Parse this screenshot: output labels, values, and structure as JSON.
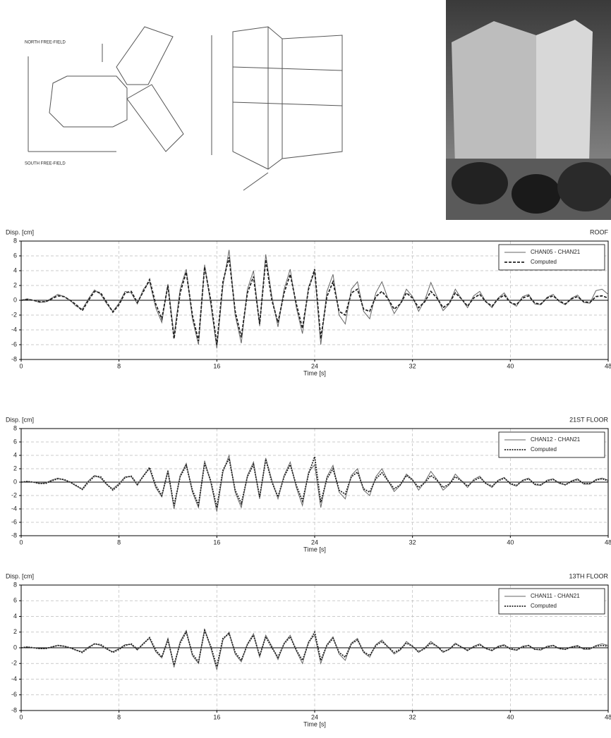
{
  "figure": {
    "labels": [
      "NORTH FREE-FIELD",
      "SOUTH FREE-FIELD"
    ]
  },
  "chart_data": [
    {
      "type": "line",
      "title": "ROOF",
      "y_label": "Disp. [cm]",
      "x_label": "Time [s]",
      "x": [
        0,
        0.5,
        1,
        1.5,
        2,
        2.5,
        3,
        3.5,
        4,
        4.5,
        5,
        5.5,
        6,
        6.5,
        7,
        7.5,
        8,
        8.5,
        9,
        9.5,
        10,
        10.5,
        11,
        11.5,
        12,
        12.5,
        13,
        13.5,
        14,
        14.5,
        15,
        15.5,
        16,
        16.5,
        17,
        17.5,
        18,
        18.5,
        19,
        19.5,
        20,
        20.5,
        21,
        21.5,
        22,
        22.5,
        23,
        23.5,
        24,
        24.5,
        25,
        25.5,
        26,
        26.5,
        27,
        27.5,
        28,
        28.5,
        29,
        29.5,
        30,
        30.5,
        31,
        31.5,
        32,
        32.5,
        33,
        33.5,
        34,
        34.5,
        35,
        35.5,
        36,
        36.5,
        37,
        37.5,
        38,
        38.5,
        39,
        39.5,
        40,
        40.5,
        41,
        41.5,
        42,
        42.5,
        43,
        43.5,
        44,
        44.5,
        45,
        45.5,
        46,
        46.5,
        47,
        47.5,
        48
      ],
      "xlim": [
        0,
        48
      ],
      "xticks": [
        0,
        8,
        16,
        24,
        32,
        40,
        48
      ],
      "ylim": [
        -8,
        8
      ],
      "yticks": [
        -8,
        -6,
        -4,
        -2,
        0,
        2,
        4,
        6,
        8
      ],
      "grid": true,
      "legend": "upper right",
      "series": [
        {
          "name": "CHAN05 - CHAN21",
          "color": "#666666",
          "linestyle": "solid",
          "values": [
            0,
            0.2,
            0,
            -0.3,
            -0.2,
            0.3,
            0.8,
            0.5,
            0,
            -0.8,
            -1.2,
            0.2,
            1.4,
            0.8,
            -0.5,
            -1.5,
            -0.4,
            1.2,
            1.0,
            -0.5,
            1.5,
            2.5,
            -1.0,
            -3.0,
            2.2,
            -4.8,
            1.5,
            4.2,
            -2.5,
            -6.0,
            4.8,
            -0.5,
            -6.5,
            2.0,
            6.8,
            -2.0,
            -5.8,
            1.5,
            4.0,
            -3.5,
            6.2,
            0.5,
            -3.6,
            1.5,
            4.2,
            -1.0,
            -4.5,
            1.8,
            3.8,
            -6.0,
            1.2,
            3.5,
            -2.0,
            -3.2,
            1.5,
            2.5,
            -1.5,
            -2.5,
            1.0,
            2.5,
            0.2,
            -1.8,
            -0.5,
            1.5,
            0.5,
            -1.5,
            0,
            2.4,
            0.5,
            -1.4,
            -0.5,
            1.5,
            0.2,
            -1.0,
            0.6,
            1.2,
            -0.2,
            -1.0,
            0.3,
            1.0,
            -0.3,
            -0.8,
            0.5,
            0.8,
            -0.5,
            -0.6,
            0.4,
            0.8,
            -0.2,
            -0.6,
            0.3,
            0.7,
            -0.3,
            -0.4,
            1.3,
            1.5,
            0.8
          ]
        },
        {
          "name": "Computed",
          "color": "#222222",
          "linestyle": "dashed",
          "values": [
            0,
            0.1,
            0,
            -0.2,
            -0.2,
            0.2,
            0.6,
            0.5,
            0,
            -0.6,
            -1.4,
            0,
            1.2,
            1.0,
            -0.3,
            -1.6,
            -0.6,
            1.0,
            1.2,
            -0.3,
            1.2,
            2.8,
            -0.5,
            -2.5,
            2.0,
            -5.2,
            1.0,
            3.8,
            -2.0,
            -5.5,
            4.5,
            0,
            -6.0,
            2.5,
            5.8,
            -1.5,
            -5.0,
            1.0,
            3.2,
            -3.2,
            5.5,
            0,
            -3.0,
            1.0,
            3.5,
            -0.5,
            -3.8,
            1.5,
            4.2,
            -5.2,
            0.5,
            2.5,
            -1.5,
            -2.0,
            1.0,
            1.5,
            -1.2,
            -1.5,
            0.5,
            1.2,
            0.2,
            -1.2,
            -0.5,
            1.0,
            0.3,
            -1.0,
            -0.2,
            1.2,
            0.3,
            -1.0,
            -0.4,
            1.0,
            0.2,
            -0.8,
            0.3,
            0.8,
            -0.2,
            -0.8,
            0.2,
            0.7,
            -0.3,
            -0.6,
            0.3,
            0.6,
            -0.4,
            -0.5,
            0.3,
            0.6,
            -0.1,
            -0.5,
            0.2,
            0.5,
            -0.2,
            -0.3,
            0.5,
            0.6,
            0.3
          ]
        }
      ]
    },
    {
      "type": "line",
      "title": "21ST FLOOR",
      "y_label": "Disp. [cm]",
      "x_label": "Time [s]",
      "x": [
        0,
        0.5,
        1,
        1.5,
        2,
        2.5,
        3,
        3.5,
        4,
        4.5,
        5,
        5.5,
        6,
        6.5,
        7,
        7.5,
        8,
        8.5,
        9,
        9.5,
        10,
        10.5,
        11,
        11.5,
        12,
        12.5,
        13,
        13.5,
        14,
        14.5,
        15,
        15.5,
        16,
        16.5,
        17,
        17.5,
        18,
        18.5,
        19,
        19.5,
        20,
        20.5,
        21,
        21.5,
        22,
        22.5,
        23,
        23.5,
        24,
        24.5,
        25,
        25.5,
        26,
        26.5,
        27,
        27.5,
        28,
        28.5,
        29,
        29.5,
        30,
        30.5,
        31,
        31.5,
        32,
        32.5,
        33,
        33.5,
        34,
        34.5,
        35,
        35.5,
        36,
        36.5,
        37,
        37.5,
        38,
        38.5,
        39,
        39.5,
        40,
        40.5,
        41,
        41.5,
        42,
        42.5,
        43,
        43.5,
        44,
        44.5,
        45,
        45.5,
        46,
        46.5,
        47,
        47.5,
        48
      ],
      "xlim": [
        0,
        48
      ],
      "xticks": [
        0,
        8,
        16,
        24,
        32,
        40,
        48
      ],
      "ylim": [
        -8,
        8
      ],
      "yticks": [
        -8,
        -6,
        -4,
        -2,
        0,
        2,
        4,
        6,
        8
      ],
      "grid": true,
      "legend": "upper right",
      "series": [
        {
          "name": "CHAN12 - CHAN21",
          "color": "#666666",
          "linestyle": "solid",
          "values": [
            0,
            0.1,
            0,
            -0.2,
            -0.1,
            0.3,
            0.6,
            0.3,
            0,
            -0.6,
            -1.0,
            0.2,
            1.0,
            0.6,
            -0.4,
            -1.0,
            -0.2,
            0.8,
            0.8,
            -0.5,
            1.0,
            2.0,
            -0.8,
            -2.2,
            1.8,
            -4.0,
            1.0,
            2.8,
            -1.5,
            -3.8,
            3.2,
            0,
            -4.4,
            1.5,
            4.0,
            -1.5,
            -3.8,
            1.0,
            3.0,
            -2.5,
            3.6,
            0.3,
            -2.5,
            1.0,
            3.0,
            -0.8,
            -3.5,
            1.5,
            2.6,
            -3.8,
            0.8,
            2.5,
            -1.5,
            -2.5,
            1.0,
            2.0,
            -1.2,
            -2.0,
            0.8,
            2.0,
            0.2,
            -1.4,
            -0.5,
            1.2,
            0.4,
            -1.2,
            0,
            1.6,
            0.4,
            -1.2,
            -0.4,
            1.2,
            0.2,
            -0.8,
            0.4,
            0.9,
            -0.2,
            -0.8,
            0.3,
            0.7,
            -0.3,
            -0.6,
            0.3,
            0.6,
            -0.4,
            -0.5,
            0.3,
            0.5,
            -0.2,
            -0.4,
            0.2,
            0.5,
            -0.3,
            -0.3,
            0.4,
            0.6,
            0.3
          ]
        },
        {
          "name": "Computed",
          "color": "#222222",
          "linestyle": "dotted",
          "values": [
            0,
            0.1,
            0,
            -0.2,
            -0.2,
            0.2,
            0.5,
            0.4,
            0,
            -0.5,
            -1.1,
            0,
            0.9,
            0.8,
            -0.3,
            -1.2,
            -0.4,
            0.7,
            0.9,
            -0.3,
            0.9,
            2.2,
            -0.5,
            -2.0,
            1.6,
            -3.5,
            0.8,
            2.5,
            -1.2,
            -3.4,
            2.8,
            0.2,
            -3.8,
            1.8,
            3.5,
            -1.2,
            -3.2,
            0.8,
            2.6,
            -2.2,
            3.4,
            0,
            -2.2,
            0.8,
            2.6,
            -0.5,
            -2.8,
            1.2,
            3.8,
            -3.0,
            0.5,
            2.0,
            -1.2,
            -1.8,
            0.8,
            1.5,
            -1.0,
            -1.5,
            0.5,
            1.4,
            0.2,
            -1.0,
            -0.4,
            1.0,
            0.3,
            -0.8,
            -0.1,
            1.0,
            0.3,
            -0.8,
            -0.3,
            0.8,
            0.2,
            -0.6,
            0.2,
            0.7,
            -0.2,
            -0.6,
            0.2,
            0.6,
            -0.2,
            -0.5,
            0.2,
            0.5,
            -0.3,
            -0.4,
            0.2,
            0.4,
            -0.1,
            -0.4,
            0.1,
            0.4,
            -0.2,
            -0.2,
            0.3,
            0.5,
            0.2
          ]
        }
      ]
    },
    {
      "type": "line",
      "title": "13TH FLOOR",
      "y_label": "Disp. [cm]",
      "x_label": "Time [s]",
      "x": [
        0,
        0.5,
        1,
        1.5,
        2,
        2.5,
        3,
        3.5,
        4,
        4.5,
        5,
        5.5,
        6,
        6.5,
        7,
        7.5,
        8,
        8.5,
        9,
        9.5,
        10,
        10.5,
        11,
        11.5,
        12,
        12.5,
        13,
        13.5,
        14,
        14.5,
        15,
        15.5,
        16,
        16.5,
        17,
        17.5,
        18,
        18.5,
        19,
        19.5,
        20,
        20.5,
        21,
        21.5,
        22,
        22.5,
        23,
        23.5,
        24,
        24.5,
        25,
        25.5,
        26,
        26.5,
        27,
        27.5,
        28,
        28.5,
        29,
        29.5,
        30,
        30.5,
        31,
        31.5,
        32,
        32.5,
        33,
        33.5,
        34,
        34.5,
        35,
        35.5,
        36,
        36.5,
        37,
        37.5,
        38,
        38.5,
        39,
        39.5,
        40,
        40.5,
        41,
        41.5,
        42,
        42.5,
        43,
        43.5,
        44,
        44.5,
        45,
        45.5,
        46,
        46.5,
        47,
        47.5,
        48
      ],
      "xlim": [
        0,
        48
      ],
      "xticks": [
        0,
        8,
        16,
        24,
        32,
        40,
        48
      ],
      "ylim": [
        -8,
        8
      ],
      "yticks": [
        -8,
        -6,
        -4,
        -2,
        0,
        2,
        4,
        6,
        8
      ],
      "grid": true,
      "legend": "upper right",
      "series": [
        {
          "name": "CHAN11 - CHAN21",
          "color": "#666666",
          "linestyle": "solid",
          "values": [
            0,
            0.1,
            0,
            -0.1,
            -0.1,
            0.1,
            0.3,
            0.2,
            0,
            -0.3,
            -0.5,
            0.1,
            0.5,
            0.3,
            -0.2,
            -0.5,
            -0.1,
            0.4,
            0.4,
            -0.3,
            0.6,
            1.2,
            -0.5,
            -1.3,
            1.2,
            -2.5,
            0.8,
            2.2,
            -1.0,
            -2.0,
            2.4,
            0,
            -2.8,
            1.0,
            2.0,
            -0.8,
            -1.8,
            0.5,
            1.8,
            -1.2,
            1.6,
            0.2,
            -1.5,
            0.6,
            1.6,
            -0.4,
            -2.0,
            0.8,
            1.6,
            -2.0,
            0.4,
            1.4,
            -0.8,
            -1.6,
            0.6,
            1.2,
            -0.6,
            -1.2,
            0.4,
            1.0,
            0.1,
            -0.8,
            -0.3,
            0.8,
            0.2,
            -0.6,
            0,
            0.8,
            0.2,
            -0.6,
            -0.2,
            0.6,
            0.1,
            -0.4,
            0.2,
            0.5,
            -0.1,
            -0.4,
            0.2,
            0.4,
            -0.2,
            -0.3,
            0.2,
            0.3,
            -0.2,
            -0.3,
            0.2,
            0.3,
            -0.1,
            -0.2,
            0.1,
            0.3,
            -0.2,
            -0.2,
            0.3,
            0.5,
            0.3
          ]
        },
        {
          "name": "Computed",
          "color": "#222222",
          "linestyle": "dotted",
          "values": [
            0,
            0.1,
            0,
            -0.1,
            -0.1,
            0.1,
            0.3,
            0.2,
            0,
            -0.3,
            -0.6,
            0,
            0.5,
            0.4,
            -0.1,
            -0.6,
            -0.2,
            0.3,
            0.5,
            -0.2,
            0.5,
            1.3,
            -0.3,
            -1.2,
            1.0,
            -2.2,
            0.6,
            2.0,
            -0.8,
            -1.8,
            2.2,
            0.2,
            -2.4,
            1.2,
            1.8,
            -0.6,
            -1.6,
            0.4,
            1.6,
            -1.0,
            1.4,
            0,
            -1.2,
            0.5,
            1.4,
            -0.3,
            -1.6,
            0.6,
            2.0,
            -1.6,
            0.3,
            1.2,
            -0.6,
            -1.2,
            0.5,
            1.0,
            -0.5,
            -1.0,
            0.3,
            0.8,
            0.1,
            -0.6,
            -0.2,
            0.6,
            0.2,
            -0.5,
            -0.1,
            0.6,
            0.2,
            -0.5,
            -0.2,
            0.5,
            0.1,
            -0.3,
            0.1,
            0.4,
            -0.1,
            -0.3,
            0.1,
            0.3,
            -0.1,
            -0.3,
            0.1,
            0.3,
            -0.2,
            -0.2,
            0.1,
            0.3,
            -0.1,
            -0.2,
            0.1,
            0.2,
            -0.1,
            -0.1,
            0.2,
            0.3,
            0.2
          ]
        }
      ]
    }
  ]
}
